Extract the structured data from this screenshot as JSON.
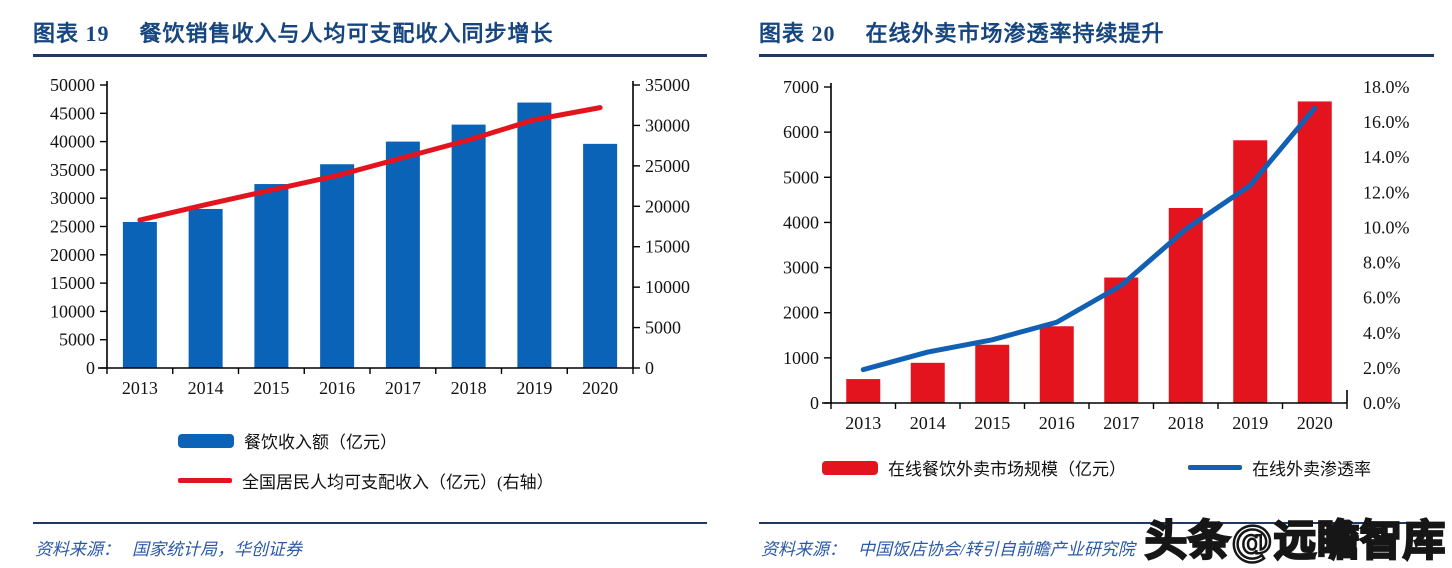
{
  "page": {
    "background": "#ffffff",
    "watermark": "头条@远瞻智库"
  },
  "colors": {
    "title": "#17457E",
    "rule": "#1F3864",
    "source": "#2A5AA8",
    "axis": "#000000",
    "bar_blue": "#0A63B6",
    "line_red": "#E3141D",
    "bar_red": "#E3141D",
    "line_blue": "#1160B4"
  },
  "charts": [
    {
      "header": {
        "label": "图表  19",
        "caption": "餐饮销售收入与人均可支配收入同步增长"
      },
      "legend": [
        {
          "type": "bar",
          "color": "#0A63B6",
          "label": "餐饮收入额（亿元）"
        },
        {
          "type": "line",
          "color": "#E3141D",
          "label": "全国居民人均可支配收入（亿元）(右轴）"
        }
      ],
      "source": {
        "prefix": "资料来源：",
        "text": "国家统计局，华创证券"
      },
      "chart_data": {
        "type": "bar",
        "subtype": "bar+line dual axis",
        "categories": [
          "2013",
          "2014",
          "2015",
          "2016",
          "2017",
          "2018",
          "2019",
          "2020"
        ],
        "series": [
          {
            "name": "餐饮收入额（亿元）",
            "type": "bar",
            "axis": "left",
            "color": "#0A63B6",
            "values": [
              25800,
              28100,
              32500,
              36000,
              40000,
              43000,
              46900,
              39600
            ]
          },
          {
            "name": "全国居民人均可支配收入（亿元）(右轴）",
            "type": "line",
            "axis": "right",
            "color": "#E3141D",
            "values": [
              18300,
              20200,
              22000,
              23800,
              26000,
              28200,
              30700,
              32200
            ]
          }
        ],
        "left_axis": {
          "min": 0,
          "max": 50000,
          "step": 5000,
          "format": "int",
          "ticks": [
            0,
            5000,
            10000,
            15000,
            20000,
            25000,
            30000,
            35000,
            40000,
            45000,
            50000
          ]
        },
        "right_axis": {
          "min": 0,
          "max": 35000,
          "step": 5000,
          "format": "int",
          "ticks": [
            0,
            5000,
            10000,
            15000,
            20000,
            25000,
            30000,
            35000
          ]
        },
        "title": "餐饮销售收入与人均可支配收入同步增长",
        "xlabel": "",
        "ylabel": "",
        "grid": false,
        "legend_position": "bottom"
      }
    },
    {
      "header": {
        "label": "图表  20",
        "caption": "在线外卖市场渗透率持续提升"
      },
      "legend": [
        {
          "type": "bar",
          "color": "#E3141D",
          "label": "在线餐饮外卖市场规模（亿元）"
        },
        {
          "type": "line",
          "color": "#1160B4",
          "label": "在线外卖渗透率"
        }
      ],
      "source": {
        "prefix": "资料来源：",
        "text": "中国饭店协会/转引自前瞻产业研究院"
      },
      "chart_data": {
        "type": "bar",
        "subtype": "bar+line dual axis",
        "categories": [
          "2013",
          "2014",
          "2015",
          "2016",
          "2017",
          "2018",
          "2019",
          "2020"
        ],
        "series": [
          {
            "name": "在线餐饮外卖市场规模（亿元）",
            "type": "bar",
            "axis": "left",
            "color": "#E3141D",
            "values": [
              530,
              890,
              1290,
              1700,
              2780,
              4320,
              5820,
              6680
            ]
          },
          {
            "name": "在线外卖渗透率",
            "type": "line",
            "axis": "right",
            "color": "#1160B4",
            "values": [
              1.9,
              2.9,
              3.6,
              4.6,
              6.7,
              9.9,
              12.4,
              16.8
            ]
          }
        ],
        "left_axis": {
          "min": 0,
          "max": 7000,
          "step": 1000,
          "format": "int",
          "ticks": [
            0,
            1000,
            2000,
            3000,
            4000,
            5000,
            6000,
            7000
          ]
        },
        "right_axis": {
          "min": 0,
          "max": 18,
          "step": 2,
          "format": "pct1",
          "ticks": [
            0,
            2,
            4,
            6,
            8,
            10,
            12,
            14,
            16,
            18
          ],
          "tick_labels": [
            "0.0%",
            "2.0%",
            "4.0%",
            "6.0%",
            "8.0%",
            "10.0%",
            "12.0%",
            "14.0%",
            "16.0%",
            "18.0%"
          ]
        },
        "title": "在线外卖市场渗透率持续提升",
        "xlabel": "",
        "ylabel": "",
        "grid": false,
        "legend_position": "bottom"
      }
    }
  ]
}
